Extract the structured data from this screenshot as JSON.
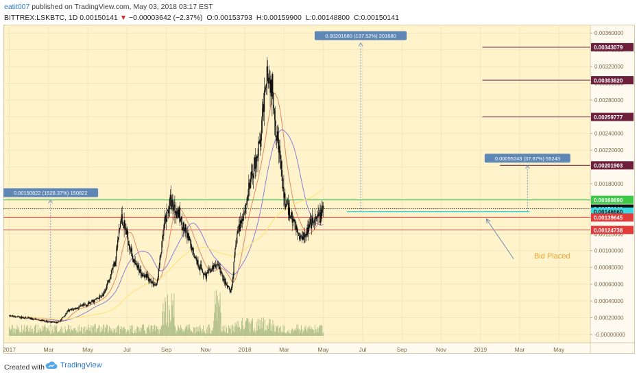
{
  "header": {
    "author": "eatit007",
    "published": "published on TradingView.com, May 03, 2018 03:17 EST",
    "symbol": "BITTREX:LSKBTC, 1D",
    "last": "0.00150141",
    "change_arrow": "▼",
    "change": "−0.00003642 (−2.37%)",
    "o_label": "O:",
    "o": "0.00153793",
    "h_label": "H:",
    "h": "0.00159900",
    "l_label": "L:",
    "l": "0.00148800",
    "c_label": "C:",
    "c": "0.00150141"
  },
  "footer": {
    "created": "Created with",
    "brand": "TradingView"
  },
  "annotation": {
    "text": "Bid Placed",
    "color": "#f0a030"
  },
  "colors": {
    "background": "#fff3cc",
    "candle": "#111111",
    "ma_fast": "#e07a5a",
    "ma_slow": "#7c6fd6",
    "ma_long": "#ffe37a",
    "volume": "#9db37a",
    "green_level": "#26c43a",
    "red_level": "#e23b3b",
    "label_blue": "#5f87b5"
  },
  "chart_data": {
    "type": "candlestick",
    "title": "BITTREX:LSKBTC, 1D",
    "x_ticks": [
      "2017",
      "Mar",
      "May",
      "Jul",
      "Sep",
      "Nov",
      "2018",
      "Mar",
      "May",
      "Jul",
      "Sep",
      "Nov",
      "2019",
      "Mar",
      "May"
    ],
    "x_tick_months": [
      0,
      2,
      4,
      6,
      8,
      10,
      12,
      14,
      16,
      18,
      20,
      22,
      24,
      26,
      28
    ],
    "y_ticks": [
      "0.00360000",
      "0.00340000",
      "0.00320000",
      "0.00300000",
      "0.00280000",
      "0.00260000",
      "0.00240000",
      "0.00220000",
      "0.00200000",
      "0.00180000",
      "0.00160000",
      "0.00140000",
      "0.00120000",
      "0.00100000",
      "0.00080000",
      "0.00060000",
      "0.00040000",
      "0.00020000",
      "-0.00000000"
    ],
    "y_range": [
      -0.0001,
      0.0037
    ],
    "x_range_months": [
      -0.3,
      29.6
    ],
    "approx_close_path": [
      {
        "m": 0.0,
        "v": 0.00022
      },
      {
        "m": 1.0,
        "v": 0.00019
      },
      {
        "m": 2.0,
        "v": 0.00015
      },
      {
        "m": 2.5,
        "v": 0.00014
      },
      {
        "m": 3.0,
        "v": 0.00028
      },
      {
        "m": 4.0,
        "v": 0.00036
      },
      {
        "m": 4.8,
        "v": 0.00047
      },
      {
        "m": 5.4,
        "v": 0.0009
      },
      {
        "m": 5.7,
        "v": 0.0014
      },
      {
        "m": 6.0,
        "v": 0.00118
      },
      {
        "m": 6.4,
        "v": 0.00082
      },
      {
        "m": 7.0,
        "v": 0.00068
      },
      {
        "m": 7.5,
        "v": 0.00058
      },
      {
        "m": 7.9,
        "v": 0.0013
      },
      {
        "m": 8.2,
        "v": 0.0016
      },
      {
        "m": 8.6,
        "v": 0.00145
      },
      {
        "m": 9.0,
        "v": 0.0012
      },
      {
        "m": 9.6,
        "v": 0.00085
      },
      {
        "m": 10.0,
        "v": 0.0007
      },
      {
        "m": 10.6,
        "v": 0.00085
      },
      {
        "m": 11.0,
        "v": 0.0006
      },
      {
        "m": 11.3,
        "v": 0.0005
      },
      {
        "m": 11.6,
        "v": 0.0012
      },
      {
        "m": 12.0,
        "v": 0.0015
      },
      {
        "m": 12.4,
        "v": 0.00195
      },
      {
        "m": 12.8,
        "v": 0.0023
      },
      {
        "m": 13.1,
        "v": 0.0032
      },
      {
        "m": 13.4,
        "v": 0.0029
      },
      {
        "m": 13.7,
        "v": 0.0023
      },
      {
        "m": 14.0,
        "v": 0.0016
      },
      {
        "m": 14.4,
        "v": 0.0014
      },
      {
        "m": 14.8,
        "v": 0.00115
      },
      {
        "m": 15.3,
        "v": 0.00128
      },
      {
        "m": 15.7,
        "v": 0.00138
      },
      {
        "m": 16.0,
        "v": 0.0015
      }
    ],
    "price_labels": [
      {
        "value": "0.00343079",
        "bg": "#6e1f3c",
        "fg": "#ffffff"
      },
      {
        "value": "0.00303620",
        "bg": "#6e1f3c",
        "fg": "#ffffff"
      },
      {
        "value": "0.00259777",
        "bg": "#6e1f3c",
        "fg": "#ffffff"
      },
      {
        "value": "0.00201903",
        "bg": "#6e1f3c",
        "fg": "#ffffff"
      },
      {
        "value": "0.00160690",
        "bg": "#3ec948",
        "fg": "#ffffff"
      },
      {
        "value": "0.00150141",
        "bg": "#111111",
        "fg": "#ffffff"
      },
      {
        "value": "0.00146660",
        "bg": "#39d9e0",
        "fg": "#111111"
      },
      {
        "value": "0.00139645",
        "bg": "#e23b3b",
        "fg": "#ffffff"
      },
      {
        "value": "0.00124738",
        "bg": "#e23b3b",
        "fg": "#ffffff"
      }
    ],
    "levels": [
      {
        "price": 0.0016069,
        "color": "#26c43a",
        "style": "solid",
        "name": "resistance"
      },
      {
        "price": 0.00150141,
        "color": "#333333",
        "style": "dotted",
        "name": "last-price"
      },
      {
        "price": 0.0013965,
        "color": "#e23b3b",
        "style": "solid",
        "name": "support-1"
      },
      {
        "price": 0.0012474,
        "color": "#e23b3b",
        "style": "solid",
        "name": "support-2"
      }
    ],
    "targets": [
      {
        "price": 0.00343079,
        "from_month": 24.1
      },
      {
        "price": 0.0030362,
        "from_month": 24.1
      },
      {
        "price": 0.00259777,
        "from_month": 24.1
      },
      {
        "price": 0.00201903,
        "from_month": 25.0
      }
    ],
    "measurements": [
      {
        "text": "0.00150822 (1528.37%) 150822",
        "month": 2.1,
        "from": 9.87e-05,
        "to": 0.0016069
      },
      {
        "text": "0.00201680 (137.52%) 201680",
        "month": 17.9,
        "from": 0.0014666,
        "to": 0.0034834
      },
      {
        "text": "0.00055243 (37.67%) 55243",
        "month": 26.4,
        "from": 0.0014666,
        "to": 0.00201903
      }
    ],
    "bid_range": {
      "price": 0.0014666,
      "from_month": 17.2,
      "to_month": 26.5,
      "color": "#39d9e0"
    },
    "bid_arrow": {
      "from_month": 25.7,
      "from_value": 0.0009,
      "to_month": 24.3,
      "to_value": 0.00138
    }
  }
}
